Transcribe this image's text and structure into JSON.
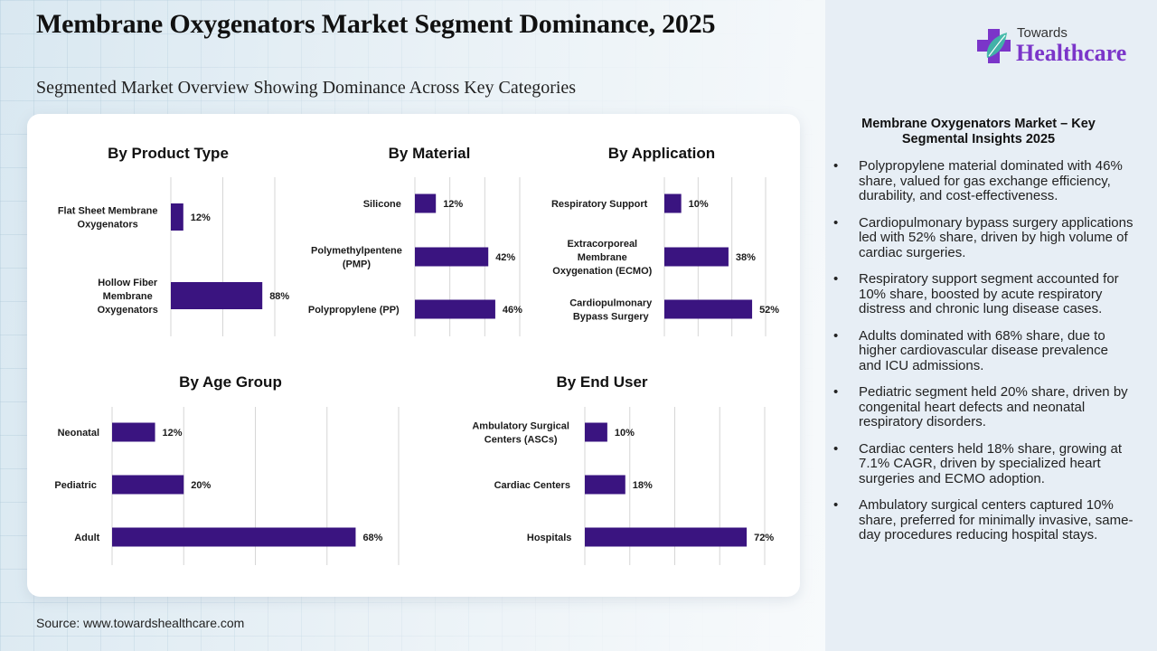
{
  "header": {
    "title": "Membrane Oxygenators Market Segment Dominance, 2025",
    "subtitle": "Segmented Market Overview Showing Dominance Across Key Categories"
  },
  "logo": {
    "line1": "Towards",
    "line2": "Healthcare",
    "icon": "medical-cross-leaf-icon",
    "brand_color": "#7b35c9"
  },
  "source": "Source: www.towardshealthcare.com",
  "colors": {
    "bar": "#3a1480",
    "gridline": "#d6d6d6",
    "panel": "#e7eef5"
  },
  "chart_data": [
    {
      "type": "bar",
      "orientation": "horizontal",
      "title": "By Product Type",
      "categories": [
        "Flat Sheet Membrane Oxygenators",
        "Hollow Fiber Membrane Oxygenators"
      ],
      "values": [
        12,
        88
      ],
      "value_labels": [
        "12%",
        "88%"
      ],
      "unit": "%",
      "xlim": [
        0,
        100
      ],
      "xgrid_step": 50,
      "grid": true,
      "xlabel": "",
      "ylabel": ""
    },
    {
      "type": "bar",
      "orientation": "horizontal",
      "title": "By Material",
      "categories": [
        "Silicone",
        "Polymethylpentene (PMP)",
        "Polypropylene (PP)"
      ],
      "values": [
        12,
        42,
        46
      ],
      "value_labels": [
        "12%",
        "42%",
        "46%"
      ],
      "unit": "%",
      "xlim": [
        0,
        60
      ],
      "xgrid_step": 20,
      "grid": true,
      "xlabel": "",
      "ylabel": ""
    },
    {
      "type": "bar",
      "orientation": "horizontal",
      "title": "By Application",
      "categories": [
        "Respiratory Support",
        "Extracorporeal Membrane Oxygenation (ECMO)",
        "Cardiopulmonary Bypass Surgery"
      ],
      "values": [
        10,
        38,
        52
      ],
      "value_labels": [
        "10%",
        "38%",
        "52%"
      ],
      "unit": "%",
      "xlim": [
        0,
        60
      ],
      "xgrid_step": 20,
      "grid": true,
      "xlabel": "",
      "ylabel": ""
    },
    {
      "type": "bar",
      "orientation": "horizontal",
      "title": "By Age Group",
      "categories": [
        "Neonatal",
        "Pediatric",
        "Adult"
      ],
      "values": [
        12,
        20,
        68
      ],
      "value_labels": [
        "12%",
        "20%",
        "68%"
      ],
      "unit": "%",
      "xlim": [
        0,
        80
      ],
      "xgrid_step": 20,
      "grid": true,
      "xlabel": "",
      "ylabel": ""
    },
    {
      "type": "bar",
      "orientation": "horizontal",
      "title": "By End User",
      "categories": [
        "Ambulatory Surgical Centers (ASCs)",
        "Cardiac Centers",
        "Hospitals"
      ],
      "values": [
        10,
        18,
        72
      ],
      "value_labels": [
        "10%",
        "18%",
        "72%"
      ],
      "unit": "%",
      "xlim": [
        0,
        80
      ],
      "xgrid_step": 20,
      "grid": true,
      "xlabel": "",
      "ylabel": ""
    }
  ],
  "insights": {
    "title": "Membrane Oxygenators Market – Key Segmental Insights 2025",
    "items": [
      "Polypropylene material dominated with 46% share, valued for gas exchange efficiency, durability, and cost-effectiveness.",
      "Cardiopulmonary bypass surgery applications led with 52% share, driven by high volume of cardiac surgeries.",
      "Respiratory support segment accounted for 10% share, boosted by acute respiratory distress and chronic lung disease cases.",
      "Adults dominated with 68% share, due to higher cardiovascular disease prevalence and ICU admissions.",
      "Pediatric segment held 20% share, driven by congenital heart defects and neonatal respiratory disorders.",
      "Cardiac centers held 18% share, growing at 7.1% CAGR, driven by specialized heart surgeries and ECMO adoption.",
      "Ambulatory surgical centers captured 10% share, preferred for minimally invasive, same-day procedures reducing hospital stays."
    ]
  }
}
